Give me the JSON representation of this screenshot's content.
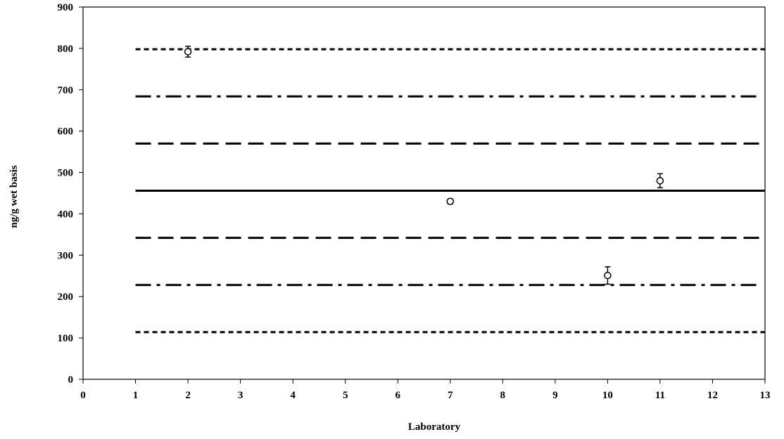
{
  "chart_data": {
    "type": "scatter",
    "title": "",
    "xlabel": "Laboratory",
    "ylabel": "ng/g wet basis",
    "xlim": [
      0,
      13
    ],
    "ylim": [
      0,
      900
    ],
    "xticks": [
      0,
      1,
      2,
      3,
      4,
      5,
      6,
      7,
      8,
      9,
      10,
      11,
      12,
      13
    ],
    "yticks": [
      0,
      100,
      200,
      300,
      400,
      500,
      600,
      700,
      800,
      900
    ],
    "grid": false,
    "legend": "none",
    "reference_lines": [
      {
        "y": 456,
        "x_range": [
          1,
          13
        ],
        "style": "solid"
      },
      {
        "y": 570,
        "x_range": [
          1,
          13
        ],
        "style": "dash"
      },
      {
        "y": 342,
        "x_range": [
          1,
          13
        ],
        "style": "dash"
      },
      {
        "y": 684,
        "x_range": [
          1,
          12.9
        ],
        "style": "dash-dot"
      },
      {
        "y": 228,
        "x_range": [
          1,
          12.9
        ],
        "style": "dash-dot"
      },
      {
        "y": 798,
        "x_range": [
          1,
          13
        ],
        "style": "short-dash"
      },
      {
        "y": 114,
        "x_range": [
          1,
          13
        ],
        "style": "short-dash"
      }
    ],
    "points": [
      {
        "x": 2,
        "y": 792,
        "err": 13
      },
      {
        "x": 7,
        "y": 430,
        "err": 6
      },
      {
        "x": 10,
        "y": 251,
        "err": 21
      },
      {
        "x": 11,
        "y": 480,
        "err": 17
      }
    ],
    "colors": {
      "line": "#000000",
      "marker_fill": "#ffffff"
    }
  }
}
